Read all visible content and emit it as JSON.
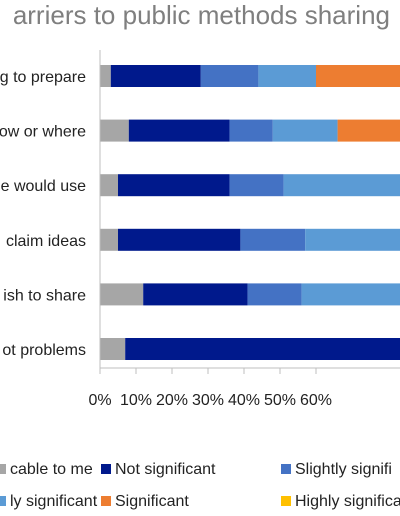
{
  "chart_data": {
    "type": "bar",
    "orientation": "horizontal",
    "stacked": true,
    "title": "arriers to public methods sharing",
    "categories": [
      "g to prepare",
      "ow or where",
      "e would use",
      "claim ideas",
      "ish to share",
      "ot problems"
    ],
    "series": [
      {
        "name": "cable to me",
        "color": "#a6a6a6",
        "values": [
          3,
          8,
          5,
          5,
          12,
          7
        ]
      },
      {
        "name": "Not significant",
        "color": "#00198c",
        "values": [
          25,
          28,
          31,
          34,
          29,
          93
        ]
      },
      {
        "name": "Slightly signifi",
        "color": "#4472c4",
        "values": [
          16,
          12,
          15,
          18,
          15,
          0
        ]
      },
      {
        "name": "ly significant",
        "color": "#5b9bd5",
        "values": [
          16,
          18,
          49,
          43,
          44,
          0
        ]
      },
      {
        "name": "Significant",
        "color": "#ed7d31",
        "values": [
          40,
          34,
          0,
          0,
          0,
          0
        ]
      },
      {
        "name": "Highly significa",
        "color": "#ffc000",
        "values": [
          0,
          0,
          0,
          0,
          0,
          0
        ]
      }
    ],
    "xlim": [
      0,
      100
    ],
    "xticks": [
      "0%",
      "10%",
      "20%",
      "30%",
      "40%",
      "50%",
      "60%"
    ],
    "grid": false,
    "legend_position": "bottom"
  }
}
